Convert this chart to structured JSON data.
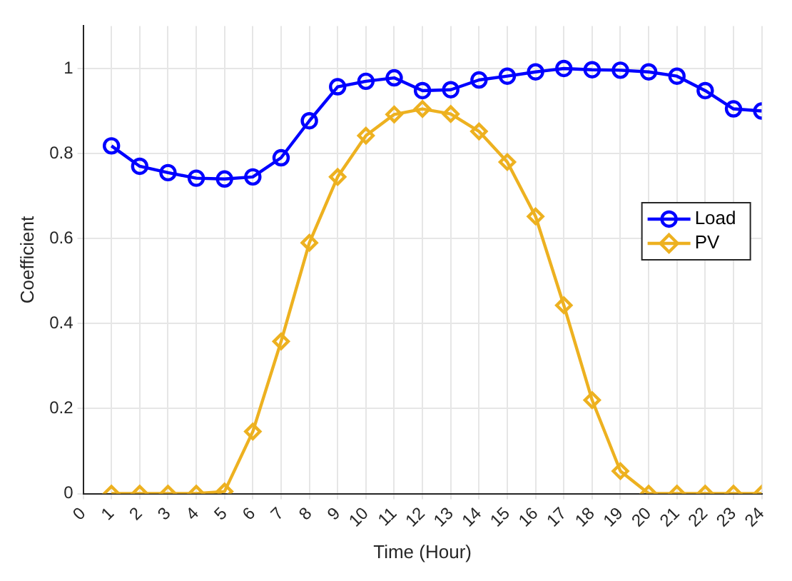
{
  "chart_data": {
    "type": "line",
    "xlabel": "Time (Hour)",
    "ylabel": "Coefficient",
    "x": [
      1,
      2,
      3,
      4,
      5,
      6,
      7,
      8,
      9,
      10,
      11,
      12,
      13,
      14,
      15,
      16,
      17,
      18,
      19,
      20,
      21,
      22,
      23,
      24
    ],
    "series": [
      {
        "name": "Load",
        "color": "#0000ff",
        "marker": "circle",
        "values": [
          0.818,
          0.77,
          0.755,
          0.742,
          0.74,
          0.745,
          0.79,
          0.877,
          0.957,
          0.97,
          0.978,
          0.948,
          0.95,
          0.973,
          0.982,
          0.992,
          1.0,
          0.997,
          0.996,
          0.992,
          0.982,
          0.948,
          0.905,
          0.9
        ]
      },
      {
        "name": "PV",
        "color": "#edb120",
        "marker": "diamond",
        "values": [
          0,
          0,
          0,
          0,
          0.005,
          0.146,
          0.358,
          0.59,
          0.745,
          0.842,
          0.892,
          0.905,
          0.893,
          0.852,
          0.78,
          0.652,
          0.443,
          0.22,
          0.053,
          0,
          0,
          0,
          0,
          0
        ]
      }
    ],
    "xlim": [
      0,
      24
    ],
    "xticks": [
      0,
      1,
      2,
      3,
      4,
      5,
      6,
      7,
      8,
      9,
      10,
      11,
      12,
      13,
      14,
      15,
      16,
      17,
      18,
      19,
      20,
      21,
      22,
      23,
      24
    ],
    "ylim": [
      0,
      1.1
    ],
    "yticks": [
      0,
      0.2,
      0.4,
      0.6,
      0.8,
      1
    ],
    "grid": true,
    "legend": "right",
    "line_style": "solid"
  }
}
